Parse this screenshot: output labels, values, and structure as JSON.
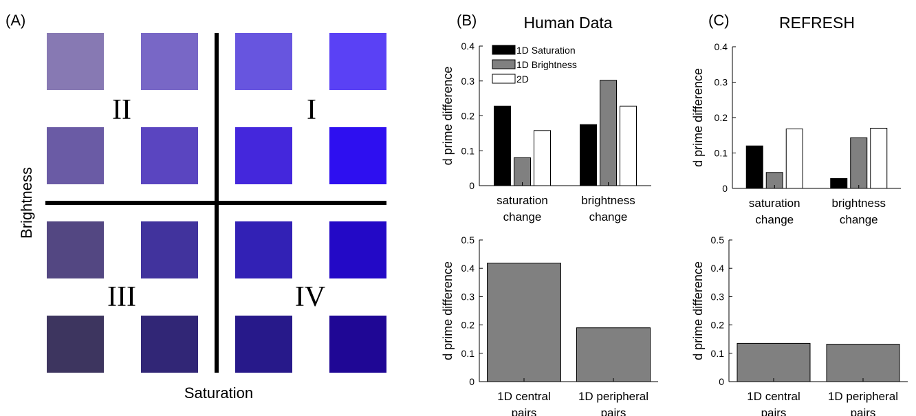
{
  "panel_labels": {
    "a": "(A)",
    "b": "(B)",
    "c": "(C)"
  },
  "panel_a": {
    "xlabel": "Saturation",
    "ylabel": "Brightness",
    "quadrants": [
      "II",
      "I",
      "III",
      "IV"
    ],
    "swatch_colors": [
      [
        "#8779b3",
        "#7867c6",
        "#6755df",
        "#5a41f5"
      ],
      [
        "#6a5ba5",
        "#5a45c0",
        "#4427dc",
        "#2e0ff0"
      ],
      [
        "#534782",
        "#41339d",
        "#3221b5",
        "#2309c6"
      ],
      [
        "#3d355f",
        "#312676",
        "#27198a",
        "#1f0795"
      ]
    ],
    "divider_color": "#000000"
  },
  "chart_data": [
    {
      "id": "B-top",
      "type": "bar",
      "title": "Human Data",
      "xlabel": "",
      "ylabel": "d prime difference",
      "categories": [
        [
          "saturation",
          "change"
        ],
        [
          "brightness",
          "change"
        ]
      ],
      "series": [
        {
          "name": "1D Saturation",
          "color": "#000000",
          "values": [
            0.228,
            0.175
          ]
        },
        {
          "name": "1D Brightness",
          "color": "#808080",
          "values": [
            0.08,
            0.302
          ]
        },
        {
          "name": "2D",
          "color": "#ffffff",
          "values": [
            0.158,
            0.228
          ]
        }
      ],
      "ylim": [
        0,
        0.4
      ],
      "yticks": [
        0,
        0.1,
        0.2,
        0.3,
        0.4
      ],
      "ytick_labels": [
        "0",
        "0.1",
        "0.2",
        "0.3",
        "0.4"
      ],
      "legend": "top-left",
      "grid": false
    },
    {
      "id": "B-bottom",
      "type": "bar",
      "title": "",
      "xlabel": "",
      "ylabel": "d prime difference",
      "categories": [
        [
          "1D central",
          "pairs"
        ],
        [
          "1D peripheral",
          "pairs"
        ]
      ],
      "series": [
        {
          "color": "#808080",
          "values": [
            0.418,
            0.19
          ]
        }
      ],
      "ylim": [
        0,
        0.5
      ],
      "yticks": [
        0,
        0.1,
        0.2,
        0.3,
        0.4,
        0.5
      ],
      "ytick_labels": [
        "0",
        "0.1",
        "0.2",
        "0.3",
        "0.4",
        "0.5"
      ],
      "grid": false
    },
    {
      "id": "C-top",
      "type": "bar",
      "title": "REFRESH",
      "xlabel": "",
      "ylabel": "d prime difference",
      "categories": [
        [
          "saturation",
          "change"
        ],
        [
          "brightness",
          "change"
        ]
      ],
      "series": [
        {
          "name": "1D Saturation",
          "color": "#000000",
          "values": [
            0.12,
            0.028
          ]
        },
        {
          "name": "1D Brightness",
          "color": "#808080",
          "values": [
            0.045,
            0.143
          ]
        },
        {
          "name": "2D",
          "color": "#ffffff",
          "values": [
            0.168,
            0.17
          ]
        }
      ],
      "ylim": [
        0,
        0.4
      ],
      "yticks": [
        0,
        0.1,
        0.2,
        0.3,
        0.4
      ],
      "ytick_labels": [
        "0",
        "0.1",
        "0.2",
        "0.3",
        "0.4"
      ],
      "grid": false
    },
    {
      "id": "C-bottom",
      "type": "bar",
      "title": "",
      "xlabel": "",
      "ylabel": "d prime difference",
      "categories": [
        [
          "1D central",
          "pairs"
        ],
        [
          "1D peripheral",
          "pairs"
        ]
      ],
      "series": [
        {
          "color": "#808080",
          "values": [
            0.135,
            0.132
          ]
        }
      ],
      "ylim": [
        0,
        0.5
      ],
      "yticks": [
        0,
        0.1,
        0.2,
        0.3,
        0.4,
        0.5
      ],
      "ytick_labels": [
        "0",
        "0.1",
        "0.2",
        "0.3",
        "0.4",
        "0.5"
      ],
      "grid": false
    }
  ]
}
